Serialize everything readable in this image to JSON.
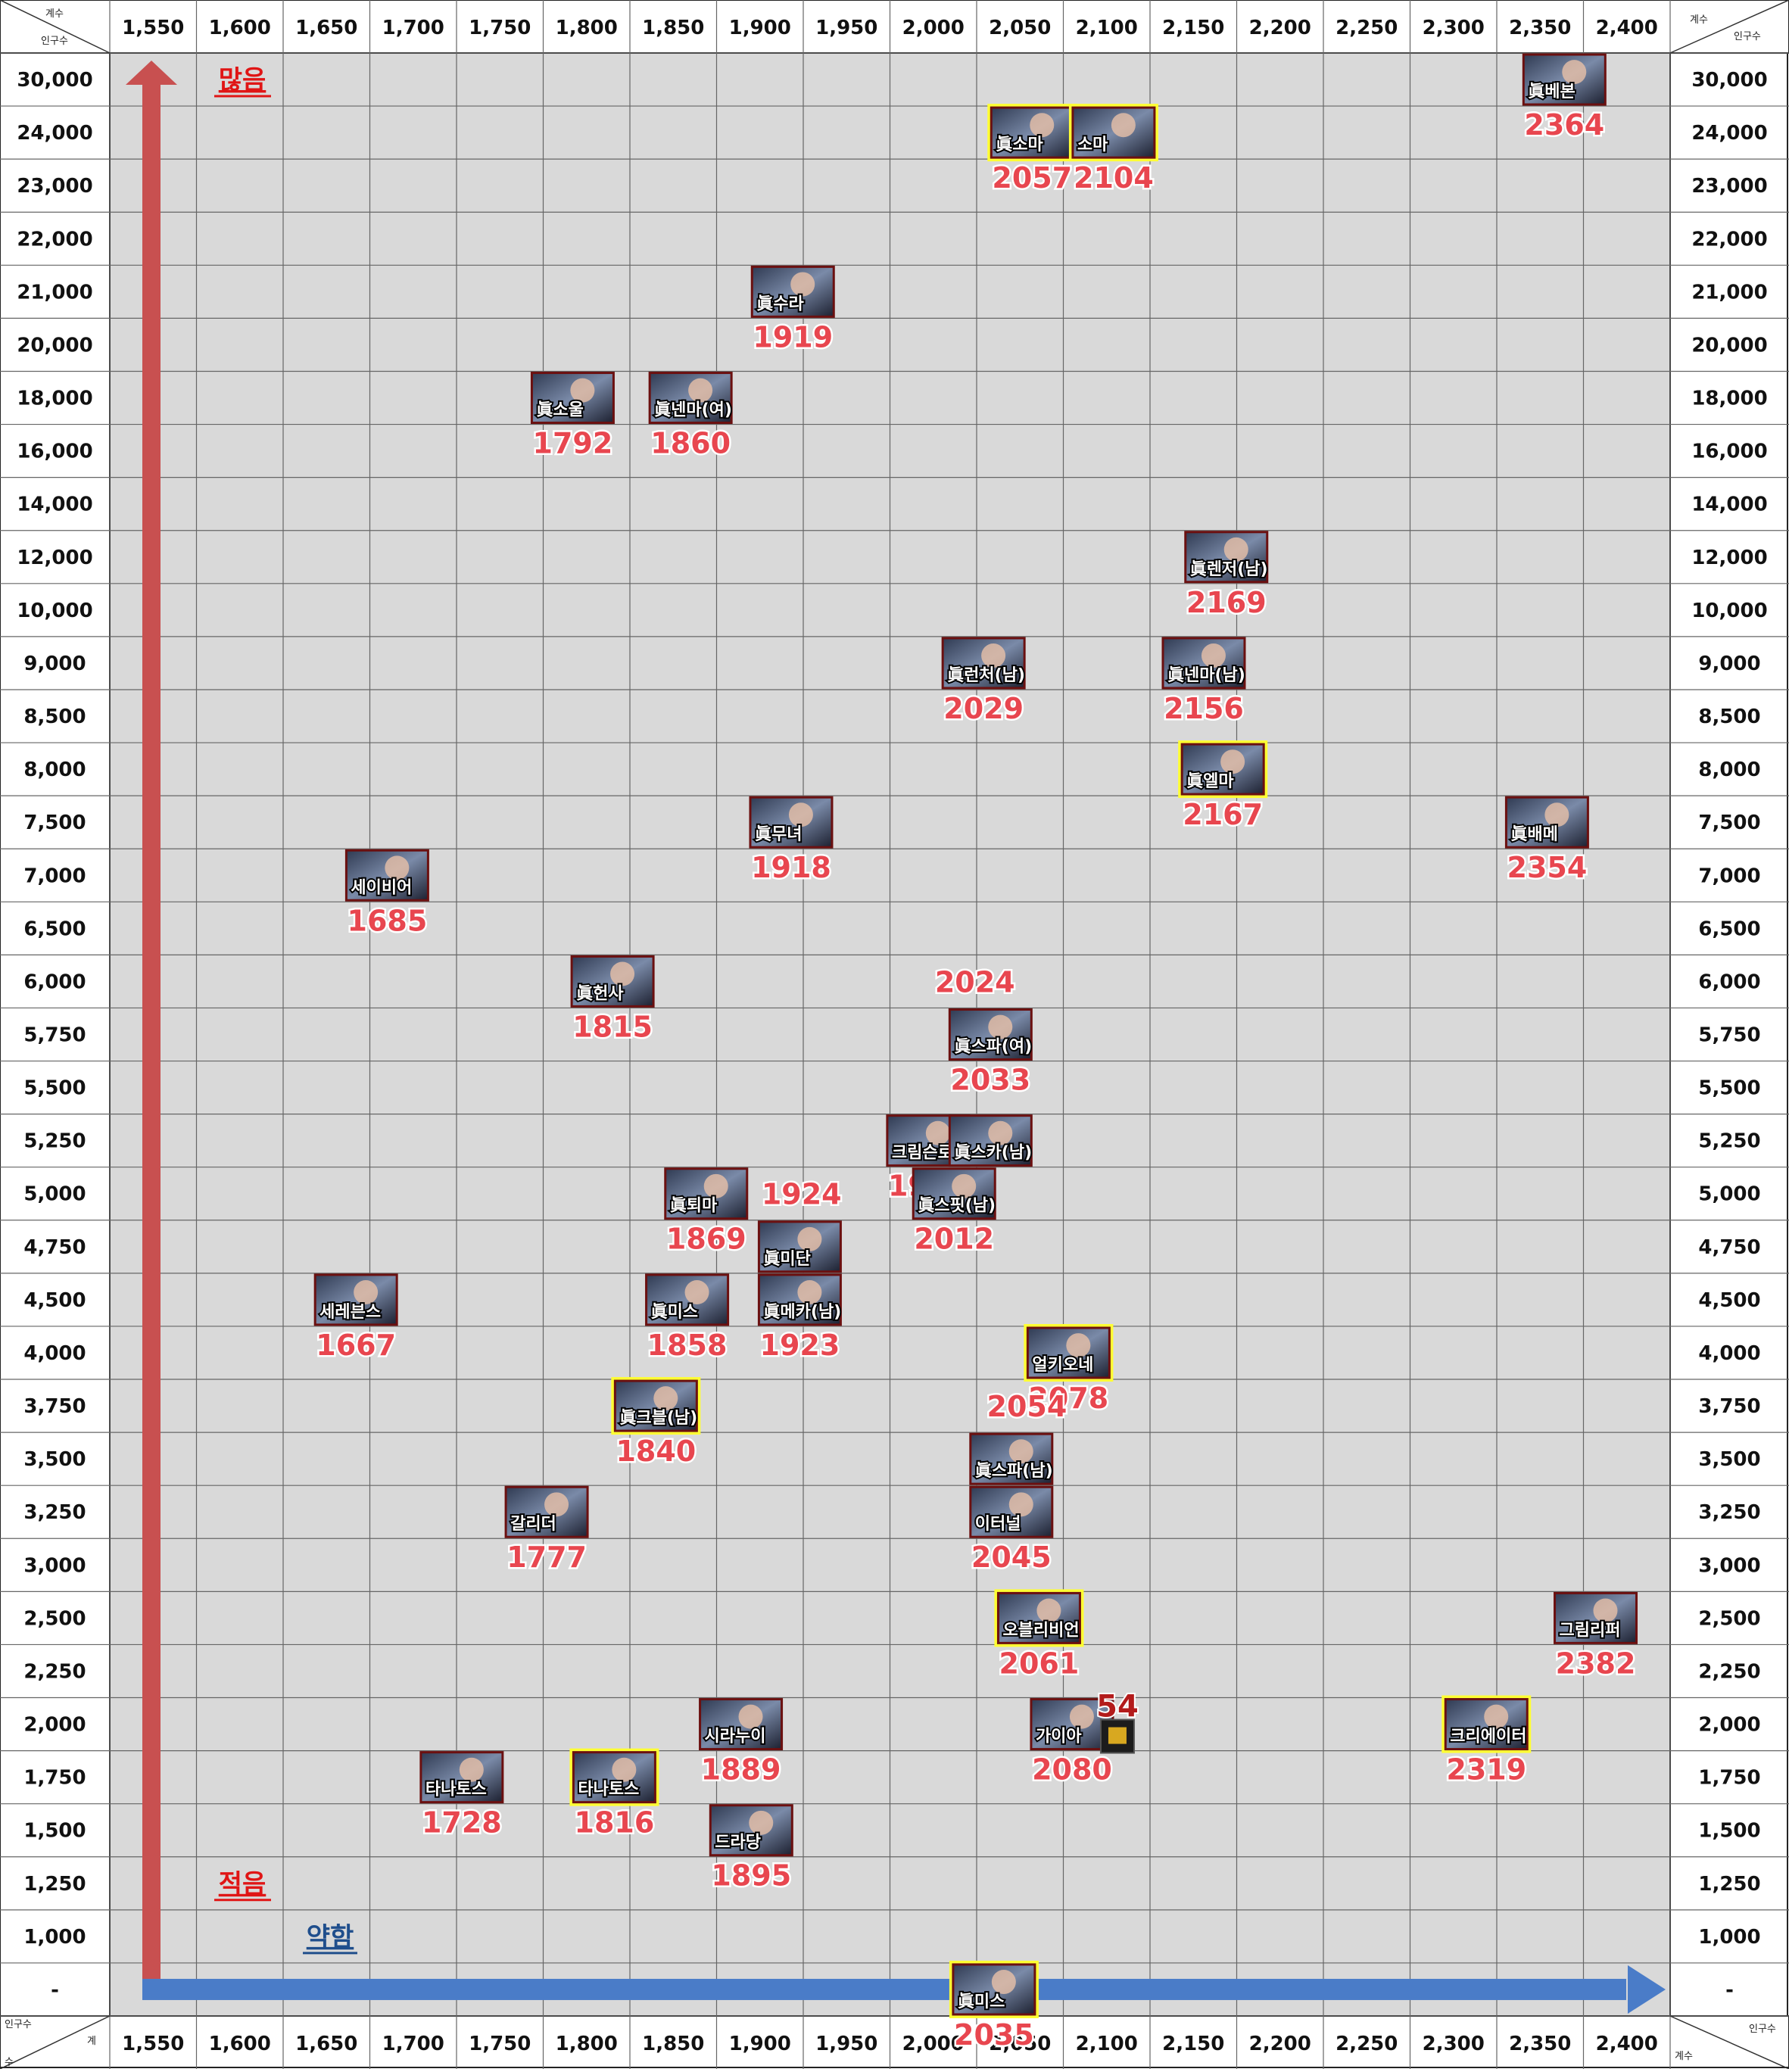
{
  "chart_data": {
    "type": "scatter",
    "title": "",
    "xlabel": "계수",
    "ylabel": "인구수",
    "corner_labels": {
      "top_left_x": "계수",
      "top_left_y": "인구수",
      "top_right_x": "계수",
      "top_right_y": "인구수",
      "bottom_left_y": "인구수",
      "bottom_left_x": "계",
      "bottom_left_extra": "수",
      "bottom_right_y": "인구수",
      "bottom_right_x": "계수"
    },
    "x_ticks": [
      "1,550",
      "1,600",
      "1,650",
      "1,700",
      "1,750",
      "1,800",
      "1,850",
      "1,900",
      "1,950",
      "2,000",
      "2,050",
      "2,100",
      "2,150",
      "2,200",
      "2,250",
      "2,300",
      "2,350",
      "2,400"
    ],
    "x_tick_values": [
      1550,
      1600,
      1650,
      1700,
      1750,
      1800,
      1850,
      1900,
      1950,
      2000,
      2050,
      2100,
      2150,
      2200,
      2250,
      2300,
      2350,
      2400
    ],
    "y_ticks": [
      "30,000",
      "24,000",
      "23,000",
      "22,000",
      "21,000",
      "20,000",
      "18,000",
      "16,000",
      "14,000",
      "12,000",
      "10,000",
      "9,000",
      "8,500",
      "8,000",
      "7,500",
      "7,000",
      "6,500",
      "6,000",
      "5,750",
      "5,500",
      "5,250",
      "5,000",
      "4,750",
      "4,500",
      "4,000",
      "3,750",
      "3,500",
      "3,250",
      "3,000",
      "2,500",
      "2,250",
      "2,000",
      "1,750",
      "1,500",
      "1,250",
      "1,000",
      "-"
    ],
    "y_tick_values": [
      30000,
      24000,
      23000,
      22000,
      21000,
      20000,
      18000,
      16000,
      14000,
      12000,
      10000,
      9000,
      8500,
      8000,
      7500,
      7000,
      6500,
      6000,
      5750,
      5500,
      5250,
      5000,
      4750,
      4500,
      4000,
      3750,
      3500,
      3250,
      3000,
      2500,
      2250,
      2000,
      1750,
      1500,
      1250,
      1000,
      0
    ],
    "grid": true,
    "annotations": {
      "y_arrow_top": "많음",
      "y_arrow_bottom": "적음",
      "x_arrow_start": "약함",
      "badge_number": "54"
    },
    "colors": {
      "y_arrow": "#c85050",
      "x_arrow": "#4a7cc8",
      "highlight_border": "#ffff33",
      "card_border": "#6b1010",
      "label": "#e8464f",
      "grid": "#777777",
      "background": "#d9d9d9"
    },
    "points": [
      {
        "name": "眞베본",
        "x": 2364,
        "y": 30000,
        "label": "2364",
        "highlight": false
      },
      {
        "name": "眞소마",
        "x": 2057,
        "y": 24000,
        "label": "2057",
        "highlight": true
      },
      {
        "name": "소마",
        "x": 2104,
        "y": 24000,
        "label": "2104",
        "highlight": true
      },
      {
        "name": "眞수라",
        "x": 1919,
        "y": 21000,
        "label": "1919",
        "highlight": false
      },
      {
        "name": "眞소울",
        "x": 1792,
        "y": 18000,
        "label": "1792",
        "highlight": false
      },
      {
        "name": "眞넨마(여)",
        "x": 1860,
        "y": 18000,
        "label": "1860",
        "highlight": false
      },
      {
        "name": "眞렌저(남)",
        "x": 2169,
        "y": 12000,
        "label": "2169",
        "highlight": false
      },
      {
        "name": "眞런처(남)",
        "x": 2029,
        "y": 9000,
        "label": "2029",
        "highlight": false
      },
      {
        "name": "眞넨마(남)",
        "x": 2156,
        "y": 9000,
        "label": "2156",
        "highlight": false
      },
      {
        "name": "眞엘마",
        "x": 2167,
        "y": 8000,
        "label": "2167",
        "highlight": true
      },
      {
        "name": "眞무녀",
        "x": 1918,
        "y": 7500,
        "label": "1918",
        "highlight": false
      },
      {
        "name": "眞배메",
        "x": 2354,
        "y": 7500,
        "label": "2354",
        "highlight": false
      },
      {
        "name": "세이비어",
        "x": 1685,
        "y": 7000,
        "label": "1685",
        "highlight": false
      },
      {
        "name": "眞헌사",
        "x": 1815,
        "y": 6000,
        "label": "1815",
        "highlight": false
      },
      {
        "name": "眞스파(여)",
        "x": 2033,
        "y": 5750,
        "label": "2033",
        "highlight": false
      },
      {
        "name": "",
        "x": 2024,
        "y": 6000,
        "label": "2024",
        "highlight": false
      },
      {
        "name": "크림슨로제",
        "x": 1997,
        "y": 5250,
        "label": "1997",
        "highlight": false
      },
      {
        "name": "眞스카(남)",
        "x": 2033,
        "y": 5250,
        "label": "",
        "highlight": false
      },
      {
        "name": "眞퇴마",
        "x": 1869,
        "y": 5000,
        "label": "1869",
        "highlight": false
      },
      {
        "name": "",
        "x": 1924,
        "y": 5000,
        "label": "1924",
        "highlight": false
      },
      {
        "name": "眞스핏(남)",
        "x": 2012,
        "y": 5000,
        "label": "2012",
        "highlight": false
      },
      {
        "name": "眞미단",
        "x": 1923,
        "y": 4750,
        "label": "",
        "highlight": false
      },
      {
        "name": "세레븐스",
        "x": 1667,
        "y": 4500,
        "label": "1667",
        "highlight": false
      },
      {
        "name": "眞미스",
        "x": 1858,
        "y": 4500,
        "label": "1858",
        "highlight": false
      },
      {
        "name": "眞메카(남)",
        "x": 1923,
        "y": 4500,
        "label": "1923",
        "highlight": false
      },
      {
        "name": "얼키오네",
        "x": 2078,
        "y": 4000,
        "label": "2078",
        "highlight": true
      },
      {
        "name": "",
        "x": 2054,
        "y": 3750,
        "label": "2054",
        "highlight": false
      },
      {
        "name": "眞크블(남)",
        "x": 1840,
        "y": 3750,
        "label": "1840",
        "highlight": true
      },
      {
        "name": "眞스파(남)",
        "x": 2045,
        "y": 3500,
        "label": "",
        "highlight": false
      },
      {
        "name": "갈리더",
        "x": 1777,
        "y": 3250,
        "label": "1777",
        "highlight": false
      },
      {
        "name": "이터널",
        "x": 2045,
        "y": 3250,
        "label": "2045",
        "highlight": false
      },
      {
        "name": "오블리비언",
        "x": 2061,
        "y": 2500,
        "label": "2061",
        "highlight": true
      },
      {
        "name": "그림리퍼",
        "x": 2382,
        "y": 2500,
        "label": "2382",
        "highlight": false
      },
      {
        "name": "시라누이",
        "x": 1889,
        "y": 2000,
        "label": "1889",
        "highlight": false
      },
      {
        "name": "가이아",
        "x": 2080,
        "y": 2000,
        "label": "2080",
        "highlight": false
      },
      {
        "name": "크리에이터",
        "x": 2319,
        "y": 2000,
        "label": "2319",
        "highlight": true
      },
      {
        "name": "타나토스",
        "x": 1728,
        "y": 1750,
        "label": "1728",
        "highlight": false
      },
      {
        "name": "타나토스",
        "x": 1816,
        "y": 1750,
        "label": "1816",
        "highlight": true
      },
      {
        "name": "드라당",
        "x": 1895,
        "y": 1500,
        "label": "1895",
        "highlight": false
      },
      {
        "name": "眞미스",
        "x": 2035,
        "y": 0,
        "label": "2035",
        "highlight": true
      }
    ]
  }
}
